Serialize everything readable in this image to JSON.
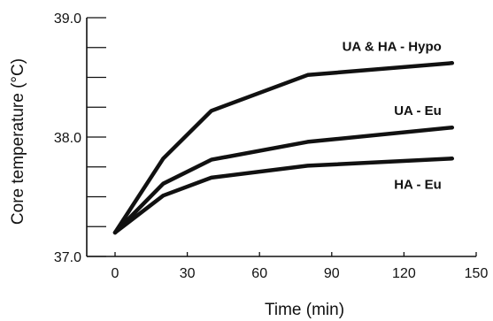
{
  "chart_data": {
    "type": "line",
    "title": "",
    "xlabel": "Time (min)",
    "ylabel": "Core temperature (°C)",
    "xlim": [
      0,
      150
    ],
    "ylim": [
      37.0,
      39.0
    ],
    "x_ticks": [
      0,
      30,
      60,
      90,
      120,
      150
    ],
    "y_ticks": [
      37.0,
      38.0,
      39.0
    ],
    "y_minor_ticks": [
      37.25,
      37.5,
      37.75,
      38.25,
      38.5,
      38.75
    ],
    "y_tick_labels": [
      "37.0",
      "38.0",
      "39.0"
    ],
    "grid": false,
    "legend": "inline labels",
    "series": [
      {
        "name": "UA & HA - Hypo",
        "x": [
          0,
          20,
          40,
          80,
          140
        ],
        "y": [
          37.2,
          37.82,
          38.22,
          38.52,
          38.62
        ]
      },
      {
        "name": "UA - Eu",
        "x": [
          0,
          20,
          40,
          80,
          140
        ],
        "y": [
          37.2,
          37.61,
          37.81,
          37.96,
          38.08
        ]
      },
      {
        "name": "HA - Eu",
        "x": [
          0,
          20,
          40,
          80,
          140
        ],
        "y": [
          37.2,
          37.51,
          37.66,
          37.76,
          37.82
        ]
      }
    ]
  }
}
